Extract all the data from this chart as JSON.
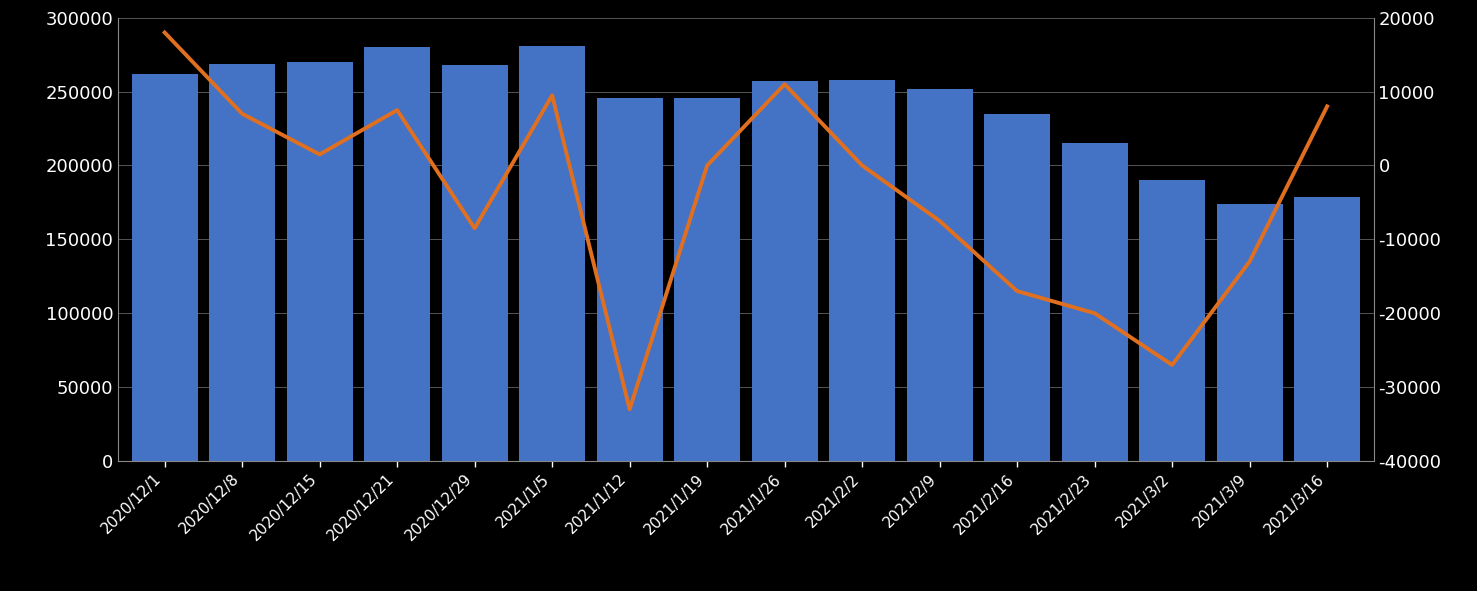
{
  "categories": [
    "2020/12/1",
    "2020/12/8",
    "2020/12/15",
    "2020/12/21",
    "2020/12/29",
    "2021/1/5",
    "2021/1/12",
    "2021/1/19",
    "2021/1/26",
    "2021/2/2",
    "2021/2/9",
    "2021/2/16",
    "2021/2/23",
    "2021/3/2",
    "2021/3/9",
    "2021/3/16"
  ],
  "bar_values": [
    262000,
    269000,
    270000,
    280000,
    268000,
    281000,
    246000,
    246000,
    257000,
    258000,
    252000,
    235000,
    215000,
    190000,
    174000,
    179000
  ],
  "line_values": [
    18000,
    7000,
    1500,
    7500,
    -8500,
    9500,
    -33000,
    0,
    11000,
    0,
    -7500,
    -17000,
    -20000,
    -27000,
    -13000,
    8000
  ],
  "bar_color": "#4472C4",
  "line_color": "#E07020",
  "background_color": "#000000",
  "text_color": "#FFFFFF",
  "grid_color": "#555555",
  "left_ylim": [
    0,
    300000
  ],
  "right_ylim": [
    -40000,
    20000
  ],
  "left_yticks": [
    0,
    50000,
    100000,
    150000,
    200000,
    250000,
    300000
  ],
  "right_yticks": [
    -40000,
    -30000,
    -20000,
    -10000,
    0,
    10000,
    20000
  ]
}
